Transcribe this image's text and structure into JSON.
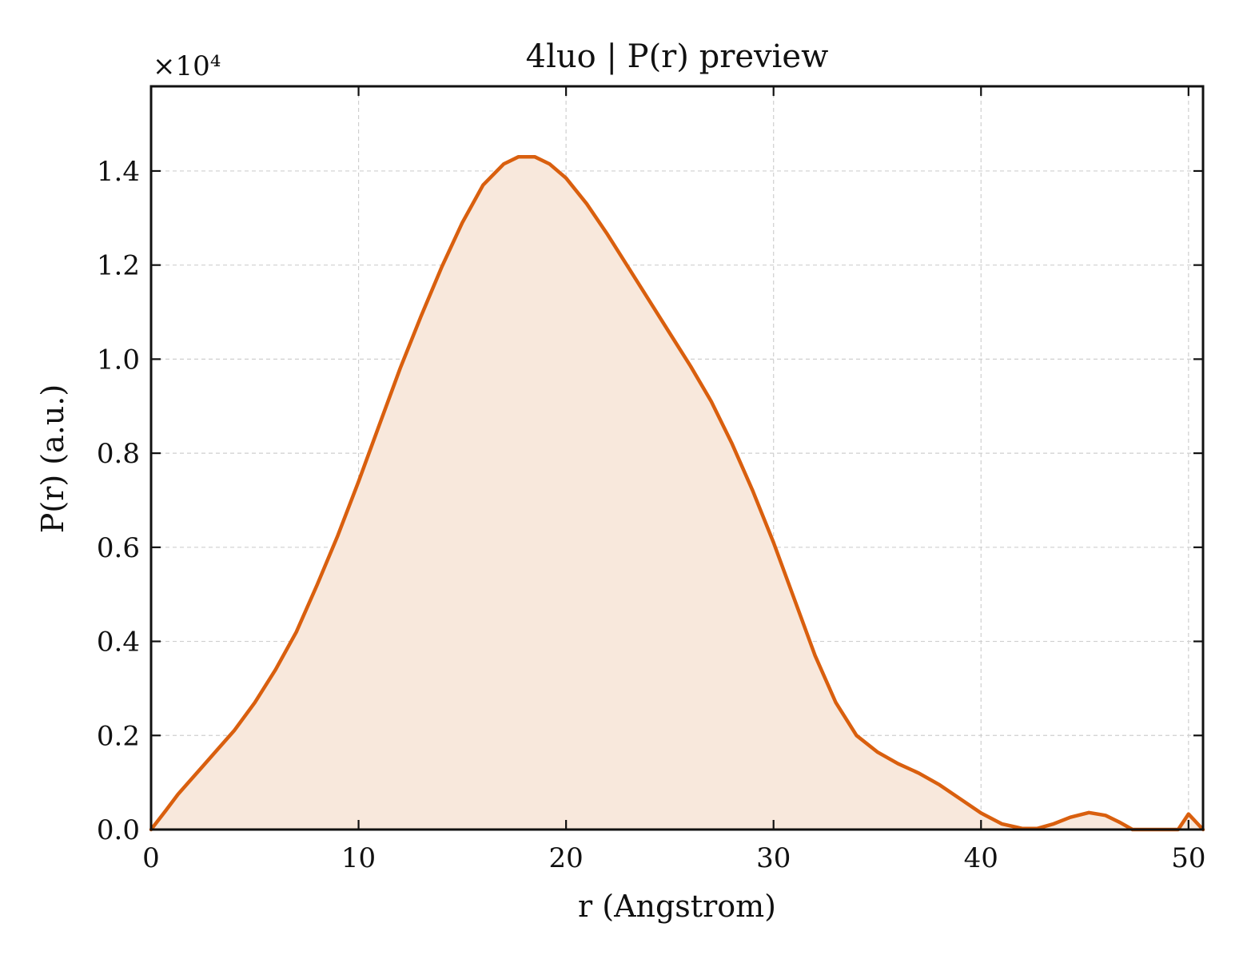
{
  "chart_data": {
    "type": "area",
    "title": "4luo | P(r) preview",
    "xlabel": "r (Angstrom)",
    "ylabel": "P(r) (a.u.)",
    "y_multiplier_label": "×10⁴",
    "xlim": [
      0,
      50.7
    ],
    "ylim": [
      0,
      1.58
    ],
    "xticks": [
      0,
      10,
      20,
      30,
      40,
      50
    ],
    "xtick_labels": [
      "0",
      "10",
      "20",
      "30",
      "40",
      "50"
    ],
    "yticks": [
      0.0,
      0.2,
      0.4,
      0.6,
      0.8,
      1.0,
      1.2,
      1.4
    ],
    "ytick_labels": [
      "0.0",
      "0.2",
      "0.4",
      "0.6",
      "0.8",
      "1.0",
      "1.2",
      "1.4"
    ],
    "grid": true,
    "line_color": "#d95f0e",
    "fill_color": "#f8e8dc",
    "series": [
      {
        "x": [
          0,
          0.7,
          1.3,
          2,
          3,
          4,
          5,
          6,
          7,
          8,
          9,
          10,
          11,
          12,
          13,
          14,
          15,
          16,
          17,
          17.7,
          18.5,
          19.2,
          20,
          21,
          22,
          23,
          24,
          25,
          26,
          27,
          28,
          29,
          30,
          31,
          32,
          33,
          34,
          35,
          36,
          37,
          38,
          39,
          40,
          41,
          42,
          42.7,
          43.5,
          44.3,
          45.2,
          46,
          46.7,
          47.3,
          48,
          49,
          49.5,
          50,
          50.7
        ],
        "y": [
          0.0,
          0.04,
          0.075,
          0.11,
          0.16,
          0.21,
          0.27,
          0.34,
          0.42,
          0.52,
          0.625,
          0.74,
          0.86,
          0.98,
          1.09,
          1.195,
          1.29,
          1.37,
          1.415,
          1.43,
          1.43,
          1.415,
          1.385,
          1.33,
          1.265,
          1.195,
          1.125,
          1.055,
          0.985,
          0.91,
          0.82,
          0.72,
          0.61,
          0.49,
          0.37,
          0.27,
          0.2,
          0.165,
          0.14,
          0.12,
          0.095,
          0.065,
          0.035,
          0.012,
          0.002,
          0.002,
          0.012,
          0.026,
          0.036,
          0.03,
          0.015,
          0.0,
          0.0,
          0.0,
          0.0,
          0.033,
          0.0
        ]
      }
    ]
  }
}
